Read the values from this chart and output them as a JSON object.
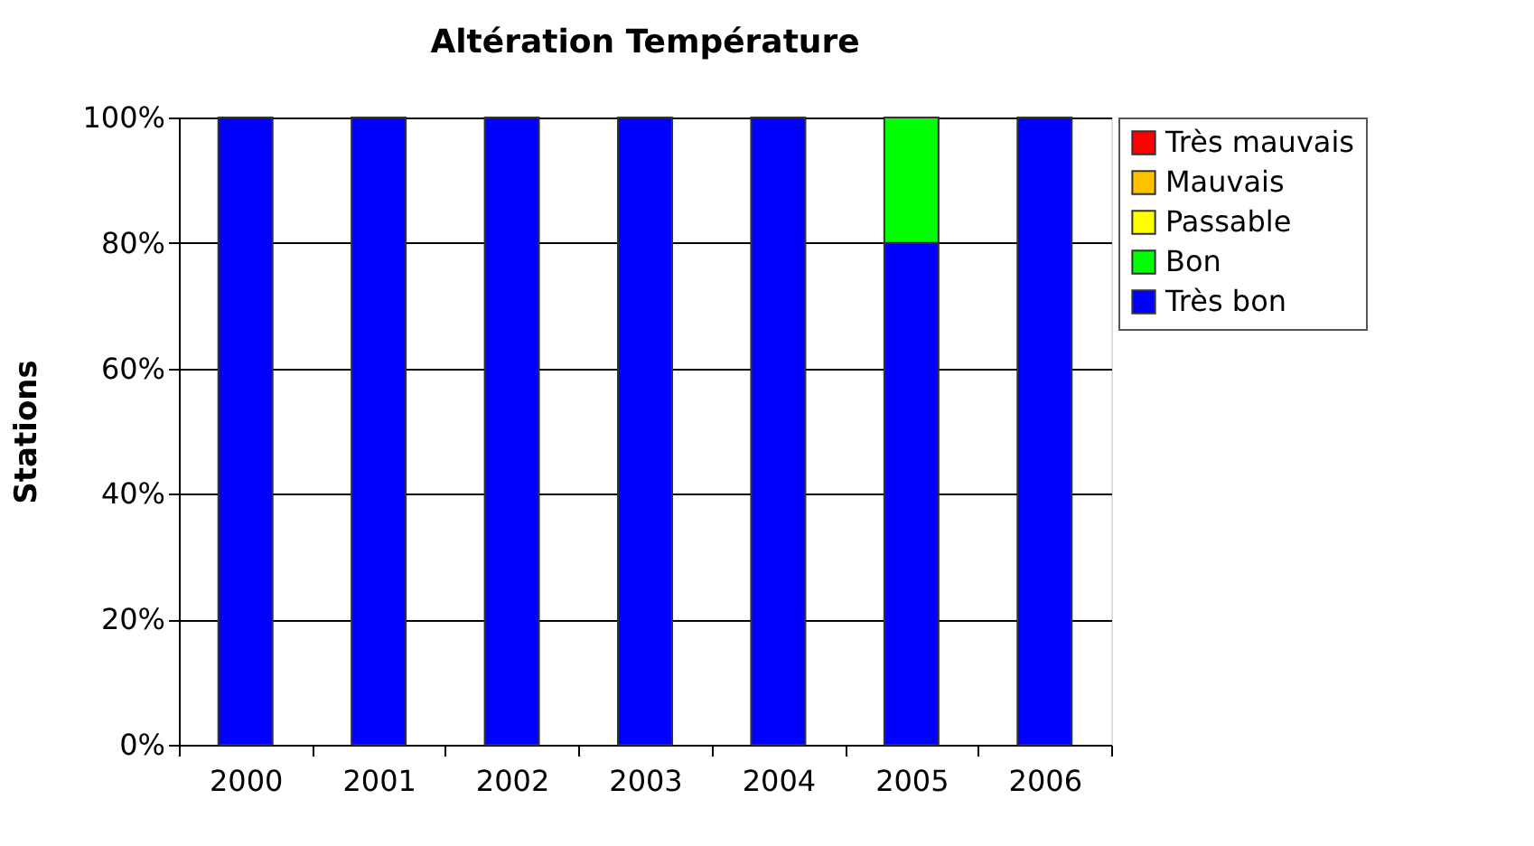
{
  "chart_data": {
    "type": "bar",
    "title": "Altération Température",
    "ylabel": "Stations",
    "stacked": true,
    "categories": [
      "2000",
      "2001",
      "2002",
      "2003",
      "2004",
      "2005",
      "2006"
    ],
    "series": [
      {
        "name": "Très bon",
        "color": "#0000ff",
        "values": [
          100,
          100,
          100,
          100,
          100,
          80,
          100
        ]
      },
      {
        "name": "Bon",
        "color": "#00ff00",
        "values": [
          0,
          0,
          0,
          0,
          0,
          20,
          0
        ]
      },
      {
        "name": "Passable",
        "color": "#ffff00",
        "values": [
          0,
          0,
          0,
          0,
          0,
          0,
          0
        ]
      },
      {
        "name": "Mauvais",
        "color": "#ffc000",
        "values": [
          0,
          0,
          0,
          0,
          0,
          0,
          0
        ]
      },
      {
        "name": "Très mauvais",
        "color": "#ff0000",
        "values": [
          0,
          0,
          0,
          0,
          0,
          0,
          0
        ]
      }
    ],
    "ylim": [
      0,
      100
    ],
    "yticks": [
      {
        "value": 0,
        "label": "0%"
      },
      {
        "value": 20,
        "label": "20%"
      },
      {
        "value": 40,
        "label": "40%"
      },
      {
        "value": 60,
        "label": "60%"
      },
      {
        "value": 80,
        "label": "80%"
      },
      {
        "value": 100,
        "label": "100%"
      }
    ],
    "grid": "y",
    "legend": "right"
  }
}
